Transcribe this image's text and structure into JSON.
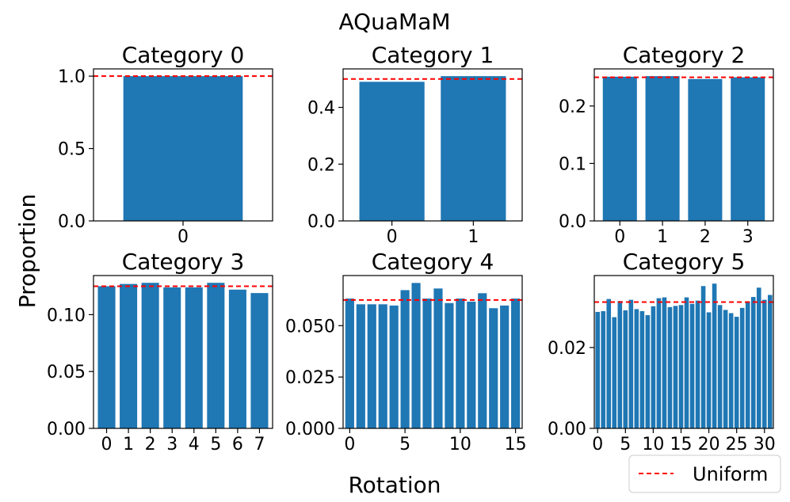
{
  "figure": {
    "suptitle": "AQuaMaM",
    "xlabel": "Rotation",
    "ylabel": "Proportion",
    "legend": {
      "label": "Uniform",
      "placement": "lower-right"
    }
  },
  "colors": {
    "bar": "#1f77b4",
    "uniform": "#ff0000",
    "axes": "#000000"
  },
  "chart_data": [
    {
      "type": "bar",
      "title": "Category 0",
      "categories": [
        0
      ],
      "values": [
        1.0
      ],
      "uniform": 1.0,
      "ylim": [
        0,
        1.05
      ],
      "yticks": [
        0.0,
        0.5,
        1.0
      ],
      "ytick_labels": [
        "0.0",
        "0.5",
        "1.0"
      ],
      "xticks": [
        0
      ],
      "xtick_labels": [
        "0"
      ]
    },
    {
      "type": "bar",
      "title": "Category 1",
      "categories": [
        0,
        1
      ],
      "values": [
        0.49,
        0.51
      ],
      "uniform": 0.5,
      "ylim": [
        0,
        0.5355
      ],
      "yticks": [
        0.0,
        0.2,
        0.4
      ],
      "ytick_labels": [
        "0.0",
        "0.2",
        "0.4"
      ],
      "xticks": [
        0,
        1
      ],
      "xtick_labels": [
        "0",
        "1"
      ]
    },
    {
      "type": "bar",
      "title": "Category 2",
      "categories": [
        0,
        1,
        2,
        3
      ],
      "values": [
        0.251,
        0.252,
        0.247,
        0.25
      ],
      "uniform": 0.25,
      "ylim": [
        0,
        0.2646
      ],
      "yticks": [
        0.0,
        0.1,
        0.2
      ],
      "ytick_labels": [
        "0.0",
        "0.1",
        "0.2"
      ],
      "xticks": [
        0,
        1,
        2,
        3
      ],
      "xtick_labels": [
        "0",
        "1",
        "2",
        "3"
      ]
    },
    {
      "type": "bar",
      "title": "Category 3",
      "categories": [
        0,
        1,
        2,
        3,
        4,
        5,
        6,
        7
      ],
      "values": [
        0.125,
        0.127,
        0.128,
        0.124,
        0.124,
        0.128,
        0.122,
        0.119
      ],
      "uniform": 0.125,
      "ylim": [
        0,
        0.1344
      ],
      "yticks": [
        0.0,
        0.05,
        0.1
      ],
      "ytick_labels": [
        "0.00",
        "0.05",
        "0.10"
      ],
      "xticks": [
        0,
        1,
        2,
        3,
        4,
        5,
        6,
        7
      ],
      "xtick_labels": [
        "0",
        "1",
        "2",
        "3",
        "4",
        "5",
        "6",
        "7"
      ]
    },
    {
      "type": "bar",
      "title": "Category 4",
      "categories": [
        0,
        1,
        2,
        3,
        4,
        5,
        6,
        7,
        8,
        9,
        10,
        11,
        12,
        13,
        14,
        15
      ],
      "values": [
        0.0632,
        0.0604,
        0.0604,
        0.0604,
        0.0598,
        0.0673,
        0.0708,
        0.0632,
        0.0681,
        0.061,
        0.0632,
        0.0617,
        0.0658,
        0.0585,
        0.0598,
        0.0632
      ],
      "uniform": 0.0625,
      "ylim": [
        0,
        0.0744
      ],
      "yticks": [
        0.0,
        0.025,
        0.05
      ],
      "ytick_labels": [
        "0.000",
        "0.025",
        "0.050"
      ],
      "xticks": [
        0,
        5,
        10,
        15
      ],
      "xtick_labels": [
        "0",
        "5",
        "10",
        "15"
      ]
    },
    {
      "type": "bar",
      "title": "Category 5",
      "categories": [
        0,
        1,
        2,
        3,
        4,
        5,
        6,
        7,
        8,
        9,
        10,
        11,
        12,
        13,
        14,
        15,
        16,
        17,
        18,
        19,
        20,
        21,
        22,
        23,
        24,
        25,
        26,
        27,
        28,
        29,
        30,
        31
      ],
      "values": [
        0.0288,
        0.029,
        0.032,
        0.0275,
        0.0315,
        0.0292,
        0.0318,
        0.0295,
        0.029,
        0.028,
        0.0302,
        0.0322,
        0.0324,
        0.03,
        0.0303,
        0.0305,
        0.0324,
        0.0308,
        0.0316,
        0.0352,
        0.0287,
        0.0358,
        0.0305,
        0.0293,
        0.0285,
        0.0276,
        0.0298,
        0.0314,
        0.0325,
        0.0348,
        0.0318,
        0.033
      ],
      "uniform": 0.03125,
      "ylim": [
        0,
        0.0378
      ],
      "yticks": [
        0.0,
        0.02
      ],
      "ytick_labels": [
        "0.00",
        "0.02"
      ],
      "xticks": [
        0,
        5,
        10,
        15,
        20,
        25,
        30
      ],
      "xtick_labels": [
        "0",
        "5",
        "10",
        "15",
        "20",
        "25",
        "30"
      ]
    }
  ]
}
